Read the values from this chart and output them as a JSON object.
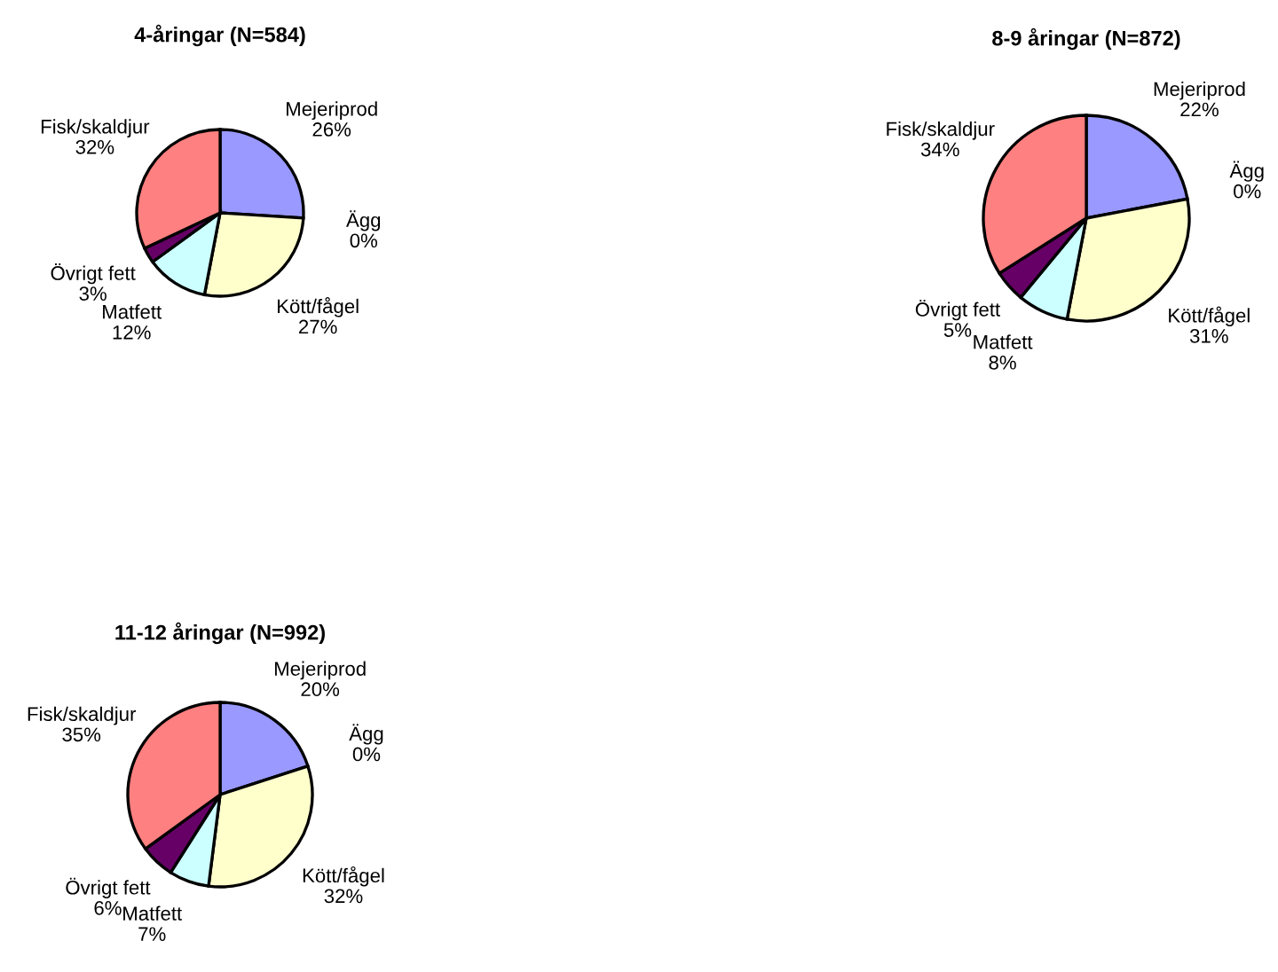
{
  "chart_data": [
    {
      "type": "pie",
      "title": "4-åringar (N=584)",
      "categories": [
        "Mejeriprod",
        "Ägg",
        "Kött/fågel",
        "Matfett",
        "Övrigt fett",
        "Fisk/skaldjur"
      ],
      "values": [
        26,
        0,
        27,
        12,
        3,
        32
      ],
      "value_labels": [
        "26%",
        "0%",
        "27%",
        "12%",
        "3%",
        "32%"
      ],
      "colors": [
        "#9999ff",
        "#993366",
        "#ffffcc",
        "#ccffff",
        "#660066",
        "#ff8080"
      ]
    },
    {
      "type": "pie",
      "title": "8-9 åringar (N=872)",
      "categories": [
        "Mejeriprod",
        "Ägg",
        "Kött/fågel",
        "Matfett",
        "Övrigt fett",
        "Fisk/skaldjur"
      ],
      "values": [
        22,
        0,
        31,
        8,
        5,
        34
      ],
      "value_labels": [
        "22%",
        "0%",
        "31%",
        "8%",
        "5%",
        "34%"
      ],
      "colors": [
        "#9999ff",
        "#993366",
        "#ffffcc",
        "#ccffff",
        "#660066",
        "#ff8080"
      ]
    },
    {
      "type": "pie",
      "title": "11-12 åringar (N=992)",
      "categories": [
        "Mejeriprod",
        "Ägg",
        "Kött/fågel",
        "Matfett",
        "Övrigt fett",
        "Fisk/skaldjur"
      ],
      "values": [
        20,
        0,
        32,
        7,
        6,
        35
      ],
      "value_labels": [
        "20%",
        "0%",
        "32%",
        "7%",
        "6%",
        "35%"
      ],
      "colors": [
        "#9999ff",
        "#993366",
        "#ffffcc",
        "#ccffff",
        "#660066",
        "#ff8080"
      ]
    }
  ]
}
